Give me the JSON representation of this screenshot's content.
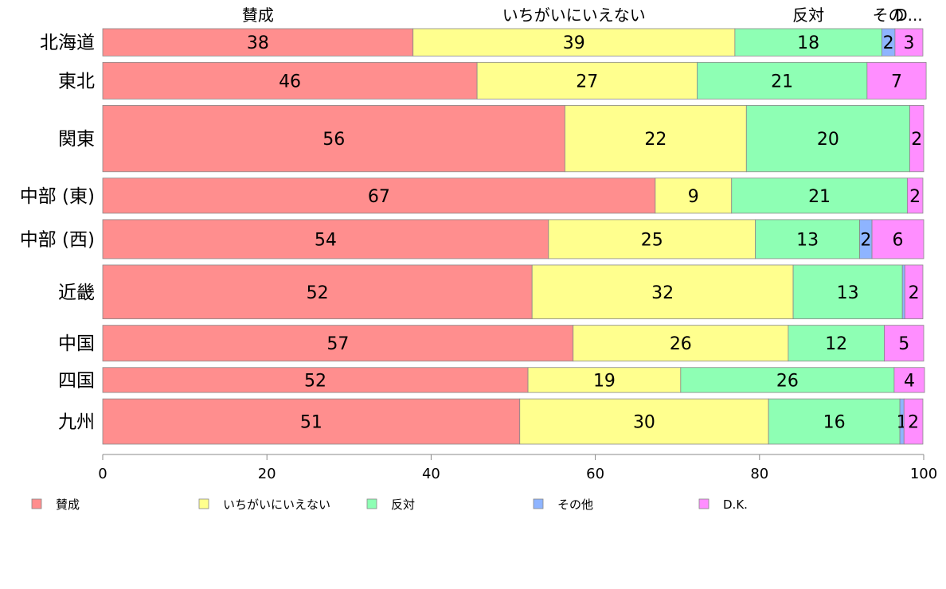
{
  "chart_data": {
    "type": "bar",
    "orientation": "horizontal",
    "stacked": true,
    "proportional_bar_height": true,
    "categories": [
      "北海道",
      "東北",
      "関東",
      "中部 (東)",
      "中部 (西)",
      "近畿",
      "中国",
      "四国",
      "九州"
    ],
    "series": [
      {
        "name": "賛成",
        "color": "#ff8e8e",
        "values": [
          37.8,
          45.6,
          56.3,
          67.3,
          54.3,
          52.3,
          57.3,
          51.8,
          50.8
        ]
      },
      {
        "name": "いちがいにいえない",
        "color": "#ffff8e",
        "values": [
          39.2,
          26.8,
          22.1,
          9.3,
          25.2,
          31.8,
          26.2,
          18.6,
          30.3
        ]
      },
      {
        "name": "反対",
        "color": "#8effb4",
        "values": [
          17.9,
          20.7,
          19.9,
          21.4,
          12.7,
          13.3,
          11.7,
          26.0,
          16.0
        ]
      },
      {
        "name": "その他",
        "color": "#8eb4ff",
        "values": [
          1.6,
          0.0,
          0.0,
          0.0,
          1.5,
          0.3,
          0.0,
          0.0,
          0.5
        ]
      },
      {
        "name": "D.K.",
        "color": "#ff8eff",
        "values": [
          3.4,
          7.2,
          1.7,
          1.9,
          6.3,
          2.2,
          4.8,
          3.7,
          2.3
        ]
      }
    ],
    "data_labels": [
      [
        "38",
        "39",
        "18",
        "2",
        "3"
      ],
      [
        "46",
        "27",
        "21",
        "",
        "7"
      ],
      [
        "56",
        "22",
        "20",
        "",
        "2"
      ],
      [
        "67",
        "9",
        "21",
        "",
        "2"
      ],
      [
        "54",
        "25",
        "13",
        "2",
        "6"
      ],
      [
        "52",
        "32",
        "13",
        "",
        "2"
      ],
      [
        "57",
        "26",
        "12",
        "",
        "5"
      ],
      [
        "52",
        "19",
        "26",
        "",
        "4"
      ],
      [
        "51",
        "30",
        "16",
        "1",
        "2"
      ]
    ],
    "row_weights": [
      35,
      47,
      85,
      45,
      50,
      69,
      46,
      32,
      58
    ],
    "top_labels": [
      "賛成",
      "いちがいにいえない",
      "反対",
      "その他",
      "D.K."
    ],
    "top_label_displays": [
      "賛成",
      "いちがいにいえない",
      "反対",
      "その",
      "D..."
    ],
    "xlim": [
      0,
      100
    ],
    "xticks": [
      "0",
      "20",
      "40",
      "60",
      "80",
      "100"
    ],
    "xlabel": "",
    "ylabel": "",
    "title": "",
    "grid": false,
    "legend": {
      "placement": "bottom",
      "entries": [
        "賛成",
        "いちがいにいえない",
        "反対",
        "その他",
        "D.K."
      ]
    }
  }
}
